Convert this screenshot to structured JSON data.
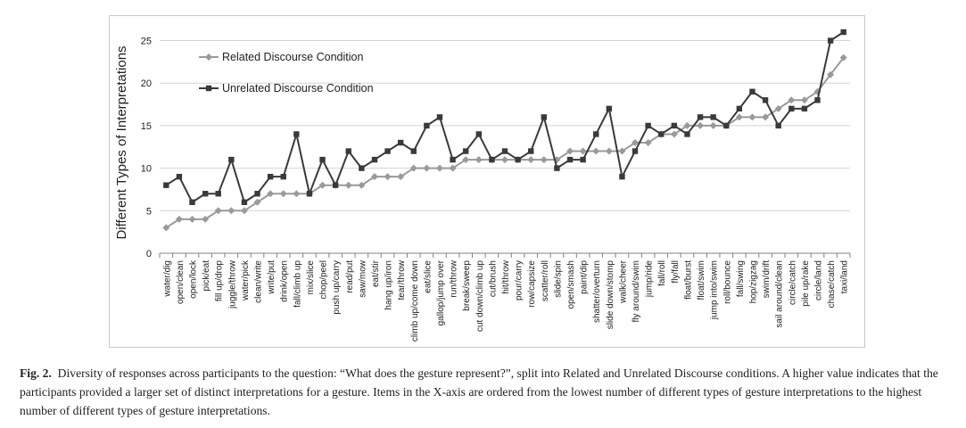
{
  "chart_data": {
    "type": "line",
    "ylabel": "Different Types of Interpretations",
    "xlabel": "",
    "ylim": [
      0,
      26
    ],
    "yticks": [
      0,
      5,
      10,
      15,
      20,
      25
    ],
    "grid": true,
    "legend_position": "top-left",
    "categories": [
      "water/dig",
      "open/clean",
      "open/lock",
      "pick/eat",
      "fill up/drop",
      "juggle/throw",
      "water/pick",
      "clean/write",
      "write/put",
      "drink/open",
      "fall/climb up",
      "mix/slice",
      "chop/peel",
      "push up/carry",
      "read/put",
      "saw/mow",
      "eat/stir",
      "hang up/iron",
      "tear/throw",
      "climb up/come down",
      "eat/slice",
      "gallop/jump over",
      "run/throw",
      "break/sweep",
      "cut down/climb up",
      "cut/brush",
      "hit/throw",
      "pour/carry",
      "row/capsize",
      "scatter/roll",
      "slide/spin",
      "open/smash",
      "paint/dip",
      "shatter/overturn",
      "slide down/stomp",
      "walk/cheer",
      "fly around/swim",
      "jump/ride",
      "fall/roll",
      "fly/fall",
      "float/burst",
      "float/swim",
      "jump into/swim",
      "roll/bounce",
      "fall/swing",
      "hop/zigzag",
      "swim/drift",
      "sail around/clean",
      "circle/catch",
      "pile up/rake",
      "circle/land",
      "chase/catch",
      "taxi/land"
    ],
    "series": [
      {
        "name": "Related Discourse Condition",
        "color": "#9a9a9a",
        "marker": "diamond",
        "values": [
          3,
          4,
          4,
          4,
          5,
          5,
          5,
          6,
          7,
          7,
          7,
          7,
          8,
          8,
          8,
          8,
          9,
          9,
          9,
          10,
          10,
          10,
          10,
          11,
          11,
          11,
          11,
          11,
          11,
          11,
          11,
          12,
          12,
          12,
          12,
          12,
          13,
          13,
          14,
          14,
          15,
          15,
          15,
          15,
          16,
          16,
          16,
          17,
          18,
          18,
          19,
          21,
          23
        ]
      },
      {
        "name": "Unrelated Discourse Condition",
        "color": "#3a3a3a",
        "marker": "square",
        "values": [
          8,
          9,
          6,
          7,
          7,
          11,
          6,
          7,
          9,
          9,
          14,
          7,
          11,
          8,
          12,
          10,
          11,
          12,
          13,
          12,
          15,
          16,
          11,
          12,
          14,
          11,
          12,
          11,
          12,
          16,
          10,
          11,
          11,
          14,
          17,
          9,
          12,
          15,
          14,
          15,
          14,
          16,
          16,
          15,
          17,
          19,
          18,
          15,
          17,
          17,
          18,
          25,
          26
        ]
      }
    ]
  },
  "caption": {
    "label": "Fig. 2.",
    "text": "Diversity of responses across participants to the question: “What does the gesture represent?”, split into Related and Unrelated Discourse conditions. A higher value indicates that the participants provided a larger set of distinct interpretations for a gesture. Items in the X-axis are ordered from the lowest number of different types of gesture interpretations to the highest number of different types of gesture interpretations."
  }
}
